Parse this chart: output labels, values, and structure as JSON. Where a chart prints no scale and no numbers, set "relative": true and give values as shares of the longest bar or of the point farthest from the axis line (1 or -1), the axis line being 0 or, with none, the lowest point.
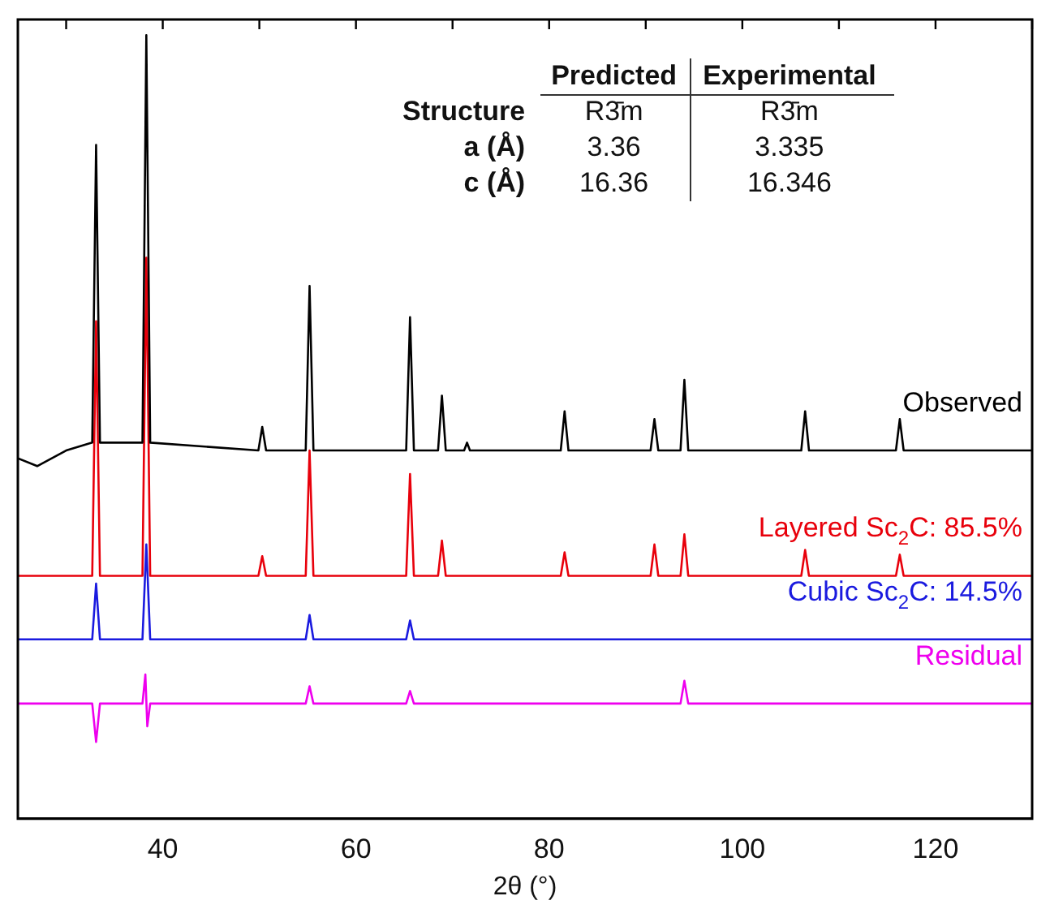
{
  "chart_data": {
    "type": "line",
    "xlabel": "2θ (°)",
    "relative": true,
    "xlim": [
      25,
      130
    ],
    "xticks": [
      {
        "value": 30,
        "label": null
      },
      40,
      {
        "value": 50,
        "label": null
      },
      60,
      {
        "value": 70,
        "label": null
      },
      80,
      {
        "value": 90,
        "label": null
      },
      100,
      {
        "value": 110,
        "label": null
      },
      120,
      {
        "value": 130,
        "label": null
      }
    ],
    "grid": false,
    "legend": false,
    "marker": "none",
    "line_style": "solid",
    "annotations": [
      "Predicted",
      "Experimental",
      "Structure",
      "R3̄m",
      "R3̄m",
      "a (Å)",
      "3.36",
      "3.335",
      "c (Å)",
      "16.36",
      "16.346"
    ],
    "series": [
      {
        "name": "Observed",
        "color": "#000000",
        "x": [
          25,
          27,
          30,
          32.7,
          33.1,
          33.5,
          37.9,
          38.3,
          38.7,
          49.9,
          50.3,
          50.7,
          54.8,
          55.2,
          55.6,
          65.2,
          65.6,
          66.0,
          68.5,
          68.9,
          69.3,
          71.2,
          71.5,
          71.8,
          81.2,
          81.6,
          82.0,
          90.5,
          90.9,
          91.3,
          93.6,
          94.0,
          94.4,
          106.1,
          106.5,
          106.9,
          115.9,
          116.3,
          116.7,
          130
        ],
        "values": [
          0.46,
          0.45,
          0.47,
          0.48,
          0.86,
          0.48,
          0.48,
          1.0,
          0.48,
          0.47,
          0.5,
          0.47,
          0.47,
          0.68,
          0.47,
          0.47,
          0.64,
          0.47,
          0.47,
          0.54,
          0.47,
          0.47,
          0.48,
          0.47,
          0.47,
          0.52,
          0.47,
          0.47,
          0.51,
          0.47,
          0.47,
          0.56,
          0.47,
          0.47,
          0.52,
          0.47,
          0.47,
          0.51,
          0.47,
          0.47
        ]
      },
      {
        "name": "Layered Sc$_{2}$C: 85.5%",
        "color": "#e8000b",
        "x": [
          25,
          32.7,
          33.1,
          33.5,
          37.9,
          38.3,
          38.7,
          49.9,
          50.3,
          50.7,
          54.8,
          55.2,
          55.6,
          65.2,
          65.6,
          66.0,
          68.5,
          68.9,
          69.3,
          81.2,
          81.6,
          82.0,
          90.5,
          90.9,
          91.3,
          93.6,
          94.0,
          94.4,
          106.1,
          106.5,
          106.9,
          115.9,
          116.3,
          116.7,
          130
        ],
        "values": [
          0.31,
          0.31,
          0.635,
          0.31,
          0.31,
          0.716,
          0.31,
          0.31,
          0.335,
          0.31,
          0.31,
          0.47,
          0.31,
          0.31,
          0.44,
          0.31,
          0.31,
          0.355,
          0.31,
          0.31,
          0.34,
          0.31,
          0.31,
          0.35,
          0.31,
          0.31,
          0.363,
          0.31,
          0.31,
          0.343,
          0.31,
          0.31,
          0.337,
          0.31,
          0.31
        ]
      },
      {
        "name": "Cubic Sc$_{2}$C: 14.5%",
        "color": "#1a1adf",
        "x": [
          25,
          32.7,
          33.1,
          33.5,
          37.9,
          38.3,
          38.7,
          54.8,
          55.2,
          55.6,
          65.2,
          65.6,
          66.0,
          130
        ],
        "values": [
          0.229,
          0.229,
          0.3,
          0.229,
          0.229,
          0.35,
          0.229,
          0.229,
          0.26,
          0.229,
          0.229,
          0.253,
          0.229,
          0.229
        ]
      },
      {
        "name": "Residual",
        "color": "#ee00ee",
        "x": [
          25,
          32.7,
          33.1,
          33.5,
          37.9,
          38.2,
          38.4,
          38.7,
          54.8,
          55.2,
          55.6,
          65.2,
          65.6,
          66.0,
          93.6,
          94.0,
          94.4,
          130
        ],
        "values": [
          0.147,
          0.147,
          0.098,
          0.147,
          0.147,
          0.184,
          0.118,
          0.147,
          0.147,
          0.169,
          0.147,
          0.147,
          0.163,
          0.147,
          0.147,
          0.176,
          0.147,
          0.147
        ]
      }
    ]
  }
}
